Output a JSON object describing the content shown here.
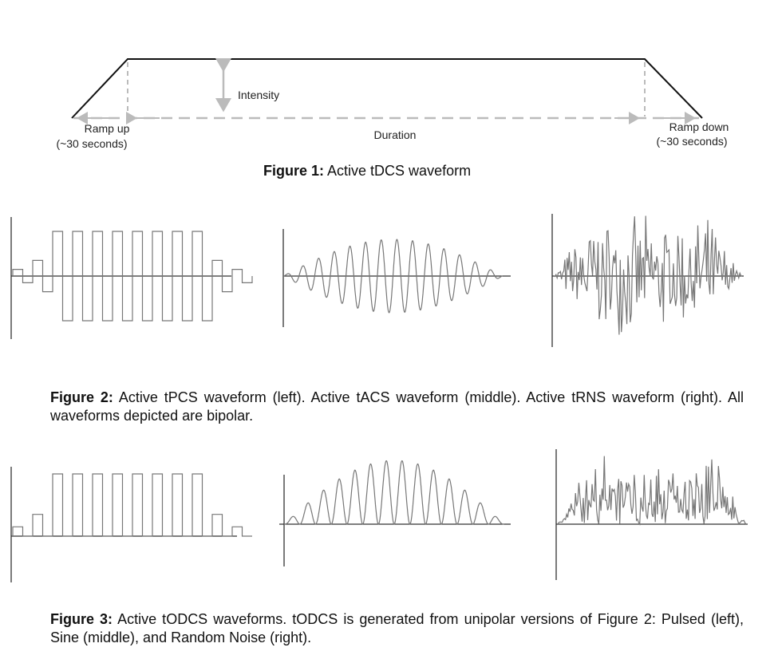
{
  "figure1": {
    "labels": {
      "intensity": "Intensity",
      "ramp_up": "Ramp up",
      "ramp_up_time": "(~30 seconds)",
      "duration": "Duration",
      "ramp_down": "Ramp down",
      "ramp_down_time": "(~30 seconds)"
    },
    "caption": {
      "label": "Figure 1:",
      "text": "Active tDCS waveform"
    }
  },
  "figure2": {
    "caption": {
      "label": "Figure 2:",
      "text": "Active tPCS waveform (left). Active tACS waveform (middle). Active tRNS waveform (right).  All waveforms depicted are bipolar."
    }
  },
  "figure3": {
    "caption": {
      "label": "Figure 3:",
      "text": "Active tODCS waveforms. tODCS is  generated from unipolar versions of Figure 2: Pulsed (left), Sine (middle), and Random Noise (right)."
    }
  }
}
